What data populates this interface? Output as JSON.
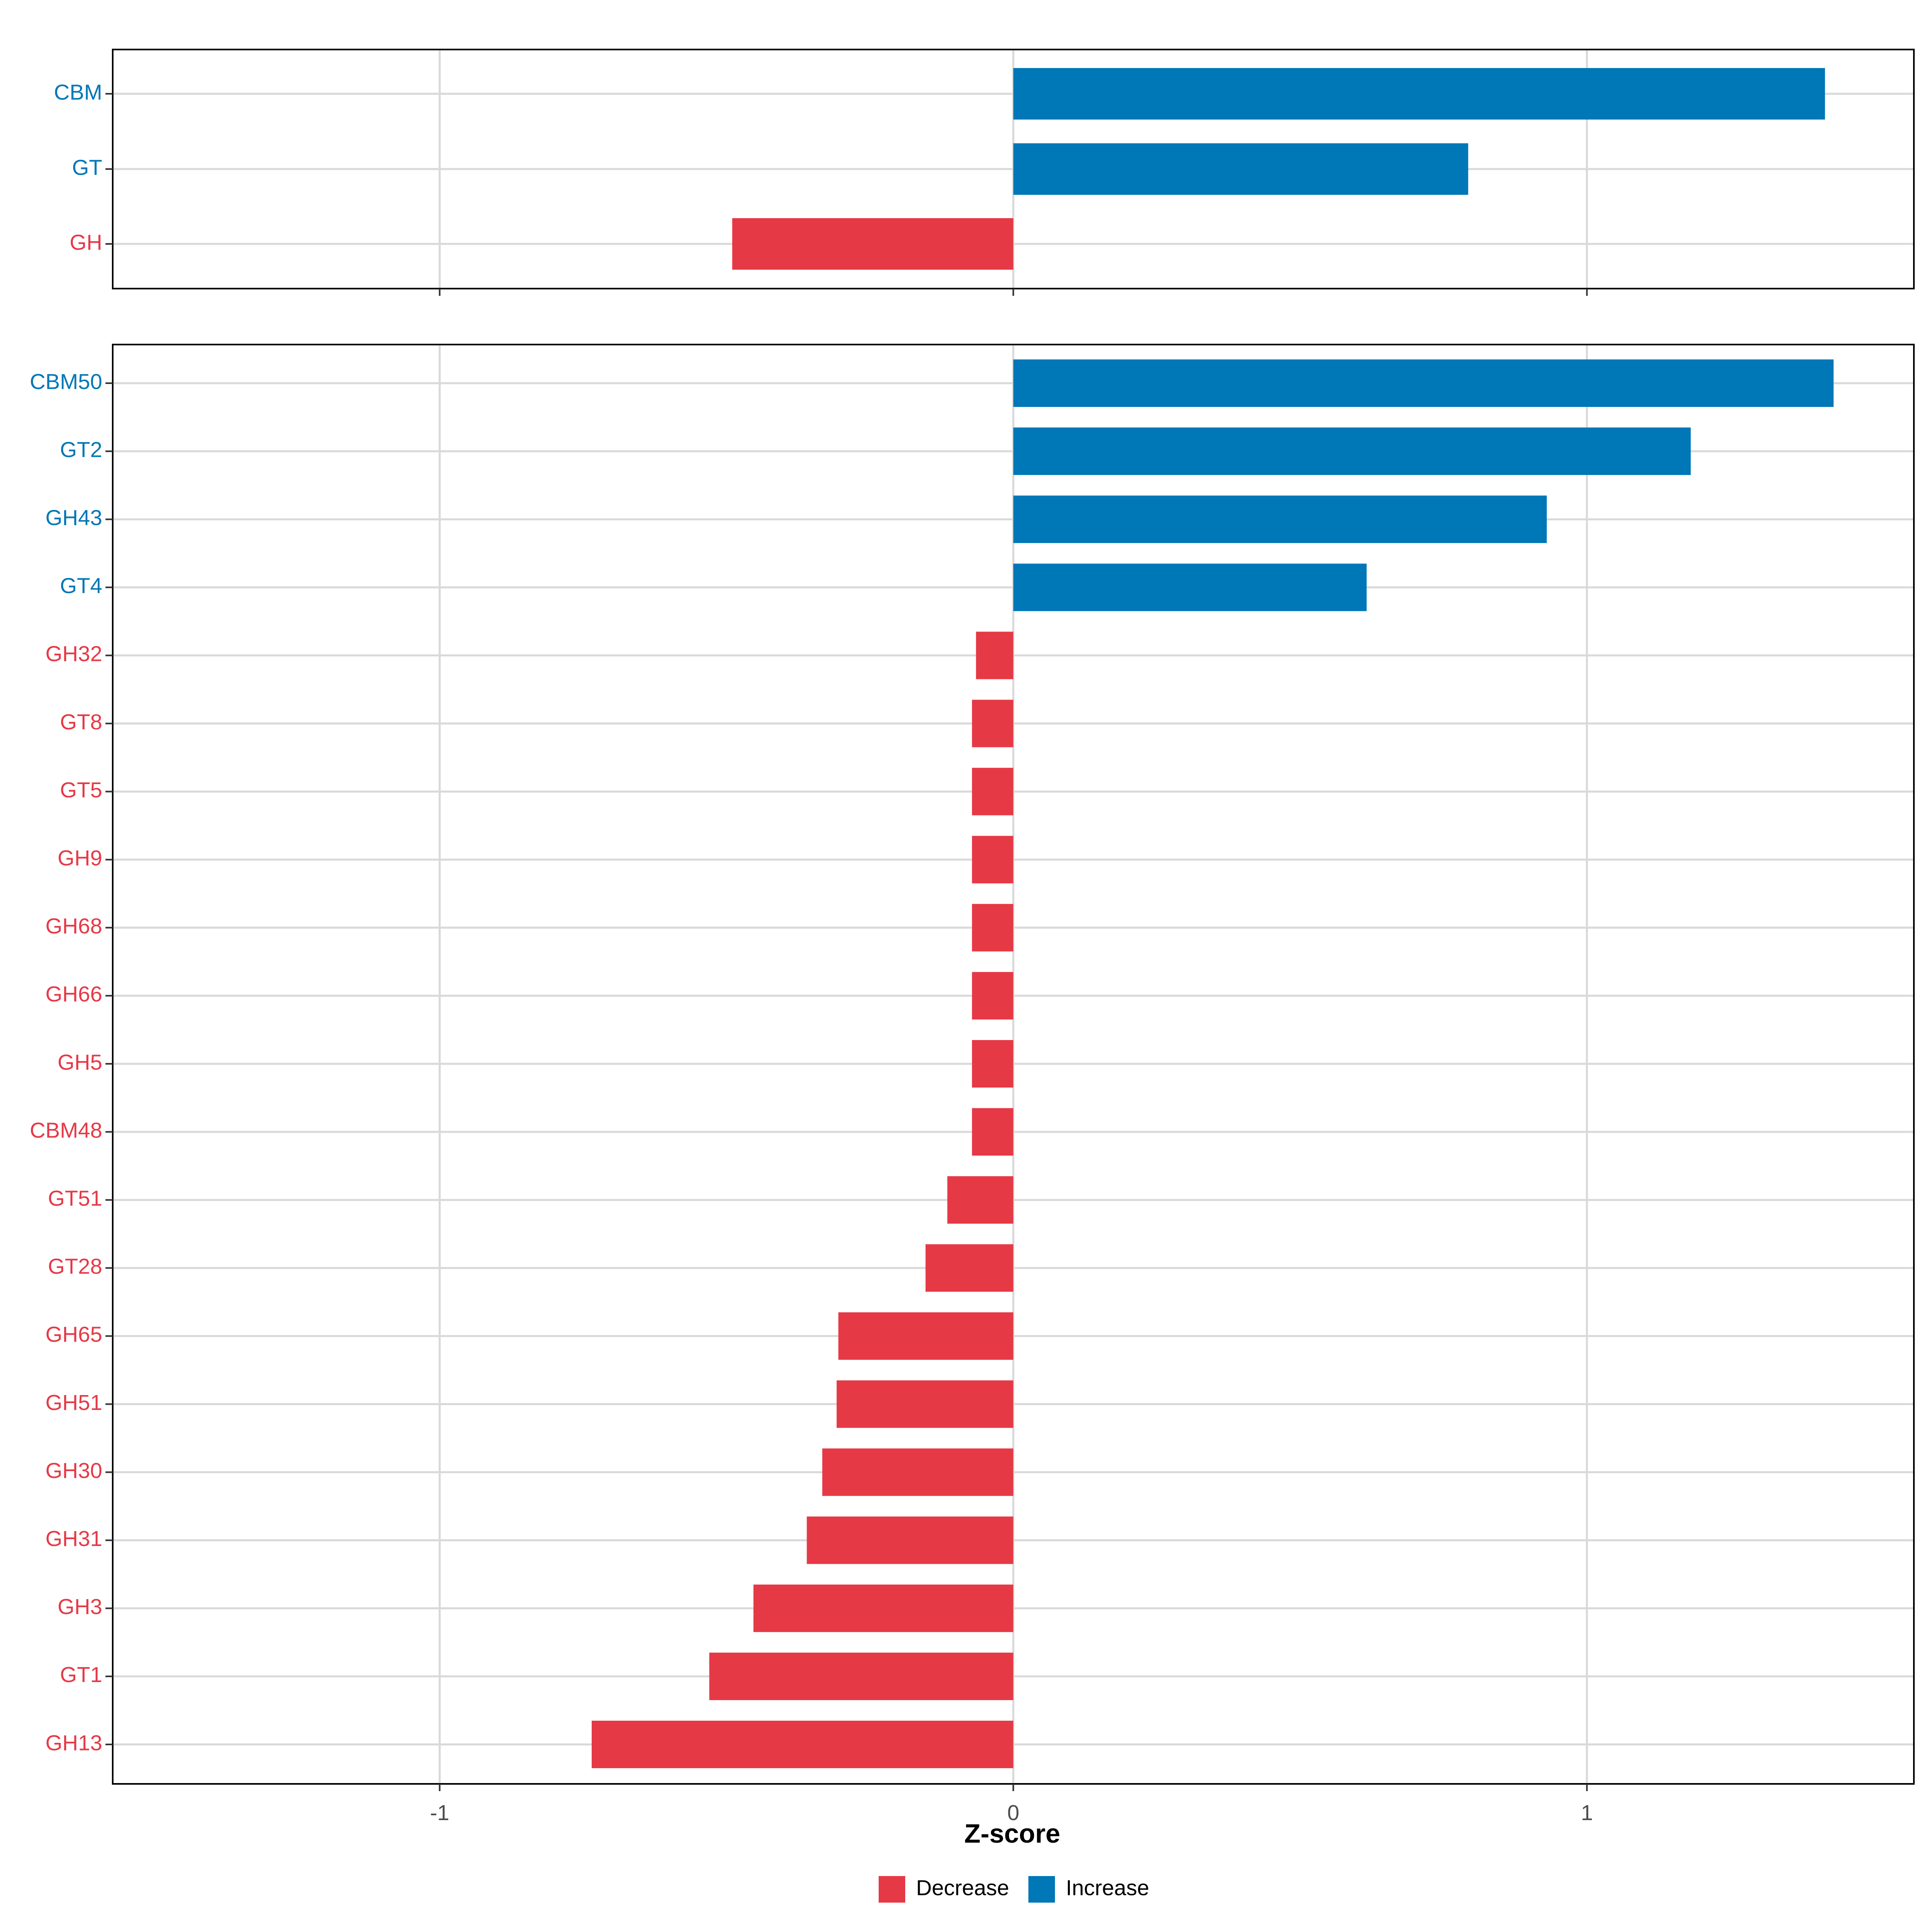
{
  "chart_data": [
    {
      "type": "bar",
      "orientation": "horizontal",
      "panel": "category",
      "categories": [
        "CBM",
        "GT",
        "GH"
      ],
      "values": [
        1.415,
        0.793,
        -0.49
      ],
      "direction": [
        "Increase",
        "Increase",
        "Decrease"
      ],
      "xlim": [
        -1.57,
        1.57
      ],
      "grid": true
    },
    {
      "type": "bar",
      "orientation": "horizontal",
      "panel": "family",
      "categories": [
        "CBM50",
        "GT2",
        "GH43",
        "GT4",
        "GH32",
        "GT8",
        "GT5",
        "GH9",
        "GH68",
        "GH66",
        "GH5",
        "CBM48",
        "GT51",
        "GT28",
        "GH65",
        "GH51",
        "GH30",
        "GH31",
        "GH3",
        "GT1",
        "GH13"
      ],
      "values": [
        1.43,
        1.181,
        0.93,
        0.616,
        -0.065,
        -0.072,
        -0.072,
        -0.072,
        -0.072,
        -0.072,
        -0.072,
        -0.072,
        -0.115,
        -0.153,
        -0.305,
        -0.308,
        -0.333,
        -0.36,
        -0.453,
        -0.53,
        -0.735
      ],
      "direction": [
        "Increase",
        "Increase",
        "Increase",
        "Increase",
        "Decrease",
        "Decrease",
        "Decrease",
        "Decrease",
        "Decrease",
        "Decrease",
        "Decrease",
        "Decrease",
        "Decrease",
        "Decrease",
        "Decrease",
        "Decrease",
        "Decrease",
        "Decrease",
        "Decrease",
        "Decrease",
        "Decrease"
      ],
      "xlim": [
        -1.57,
        1.57
      ],
      "xticks": [
        -1,
        0,
        1
      ],
      "xtick_labels": [
        "-1",
        "0",
        "1"
      ],
      "xlabel": "Z-score",
      "grid": true
    }
  ],
  "legend": {
    "placement": "bottom",
    "items": [
      {
        "label": "Decrease",
        "color": "#e63946"
      },
      {
        "label": "Increase",
        "color": "#0077b6"
      }
    ]
  },
  "colors": {
    "Decrease": "#e63946",
    "Increase": "#0077b6",
    "grid": "#d9d9d9",
    "frame": "#000000"
  }
}
